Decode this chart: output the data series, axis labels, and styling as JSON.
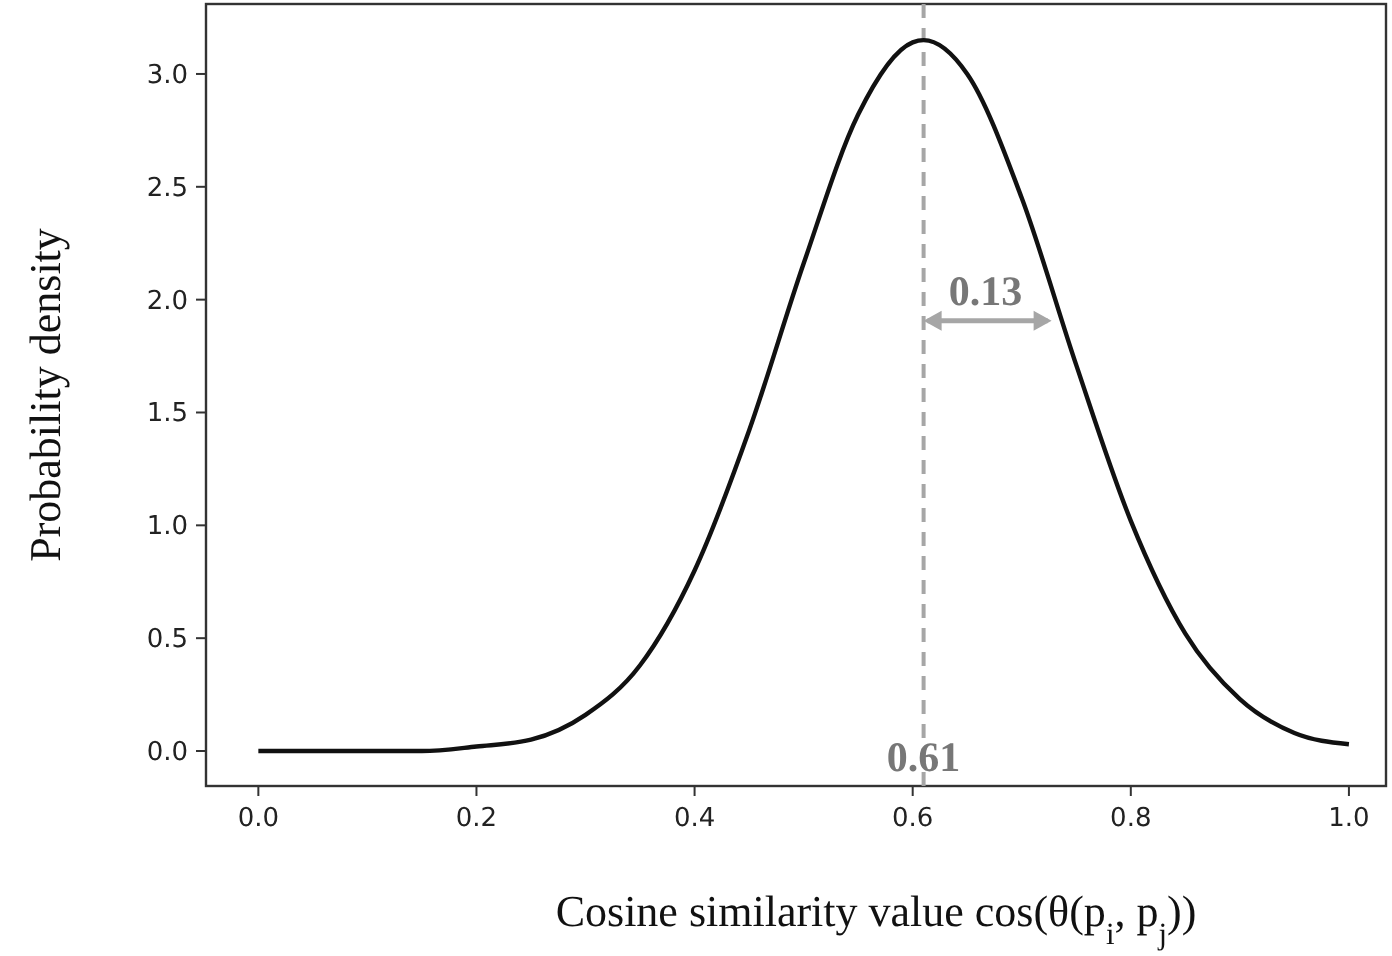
{
  "chart_data": {
    "type": "line",
    "xlabel": "Cosine similarity value cos(θ(p$_{i}$, p$_{j}$))",
    "ylabel": "Probability density",
    "x": [
      0,
      0.1,
      0.15,
      0.2,
      0.25,
      0.3,
      0.35,
      0.4,
      0.45,
      0.5,
      0.55,
      0.6,
      0.61,
      0.65,
      0.7,
      0.75,
      0.8,
      0.85,
      0.9,
      0.95,
      1.0
    ],
    "series": [
      {
        "color": "#111111",
        "values": [
          0.0,
          0.0,
          0.0,
          0.02,
          0.05,
          0.16,
          0.38,
          0.8,
          1.42,
          2.16,
          2.82,
          3.14,
          3.15,
          3.0,
          2.45,
          1.71,
          1.02,
          0.52,
          0.23,
          0.08,
          0.03
        ]
      }
    ],
    "xlim": [
      -0.048,
      1.034
    ],
    "ylim": [
      -0.155,
      3.31
    ],
    "xticks": [
      {
        "value": 0,
        "label": "0.0"
      },
      0.2,
      0.4,
      0.6,
      0.8,
      {
        "value": 1,
        "label": "1.0"
      }
    ],
    "yticks": [
      {
        "value": 0,
        "label": "0.0"
      },
      0.5,
      {
        "value": 1,
        "label": "1.0"
      },
      1.5,
      {
        "value": 2,
        "label": "2.0"
      },
      2.5,
      {
        "value": 3,
        "label": "3.0"
      }
    ],
    "ref_lines": [
      {
        "axis": "x",
        "value": 0.61,
        "color": "#a6a6a6",
        "line_style": "dashed"
      }
    ],
    "annotations": [
      {
        "text": "0.61",
        "x": 0.61,
        "y": 0
      },
      "0.13"
    ],
    "grid": false,
    "marker": "none",
    "line_style": "solid"
  }
}
